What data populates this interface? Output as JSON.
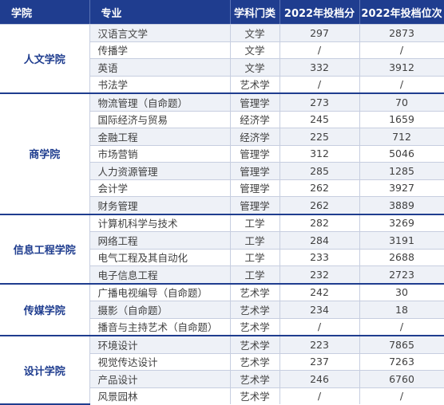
{
  "headers": [
    "学院",
    "专业",
    "学科门类",
    "2022年投档分",
    "2022年投档位次"
  ],
  "colleges": [
    {
      "name": "人文学院",
      "rows": [
        [
          "汉语言文学",
          "文学",
          "297",
          "2873"
        ],
        [
          "传播学",
          "文学",
          "/",
          "/"
        ],
        [
          "英语",
          "文学",
          "332",
          "3912"
        ],
        [
          "书法学",
          "艺术学",
          "/",
          "/"
        ]
      ]
    },
    {
      "name": "商学院",
      "rows": [
        [
          "物流管理（自命题）",
          "管理学",
          "273",
          "70"
        ],
        [
          "国际经济与贸易",
          "经济学",
          "245",
          "1659"
        ],
        [
          "金融工程",
          "经济学",
          "225",
          "712"
        ],
        [
          "市场营销",
          "管理学",
          "312",
          "5046"
        ],
        [
          "人力资源管理",
          "管理学",
          "285",
          "1285"
        ],
        [
          "会计学",
          "管理学",
          "262",
          "3927"
        ],
        [
          "财务管理",
          "管理学",
          "262",
          "3889"
        ]
      ]
    },
    {
      "name": "信息工程学院",
      "rows": [
        [
          "计算机科学与技术",
          "工学",
          "282",
          "3269"
        ],
        [
          "网络工程",
          "工学",
          "284",
          "3191"
        ],
        [
          "电气工程及其自动化",
          "工学",
          "233",
          "2688"
        ],
        [
          "电子信息工程",
          "工学",
          "232",
          "2723"
        ]
      ]
    },
    {
      "name": "传媒学院",
      "rows": [
        [
          "广播电视编导（自命题）",
          "艺术学",
          "242",
          "30"
        ],
        [
          "摄影（自命题）",
          "艺术学",
          "234",
          "18"
        ],
        [
          "播音与主持艺术（自命题）",
          "艺术学",
          "/",
          "/"
        ]
      ]
    },
    {
      "name": "设计学院",
      "rows": [
        [
          "环境设计",
          "艺术学",
          "223",
          "7865"
        ],
        [
          "视觉传达设计",
          "艺术学",
          "237",
          "7263"
        ],
        [
          "产品设计",
          "艺术学",
          "246",
          "6760"
        ],
        [
          "风景园林",
          "艺术学",
          "/",
          "/"
        ]
      ]
    }
  ]
}
